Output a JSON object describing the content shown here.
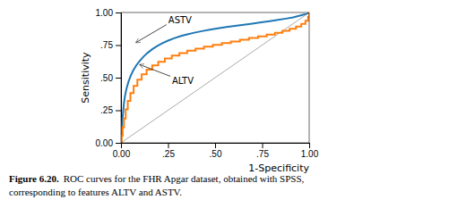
{
  "chart_data": {
    "type": "line",
    "title": "",
    "xlabel": "1-Specificity",
    "ylabel": "Sensitivity",
    "xlim": [
      0.0,
      1.0
    ],
    "ylim": [
      0.0,
      1.0
    ],
    "xticks": [
      {
        "value": 0.0,
        "label": "0.00"
      },
      {
        "value": 0.25,
        "label": ".25"
      },
      {
        "value": 0.5,
        "label": ".50"
      },
      {
        "value": 0.75,
        "label": ".75"
      },
      {
        "value": 1.0,
        "label": "1.00"
      }
    ],
    "yticks": [
      {
        "value": 0.0,
        "label": "0.00"
      },
      {
        "value": 0.25,
        "label": ".25"
      },
      {
        "value": 0.5,
        "label": ".50"
      },
      {
        "value": 0.75,
        "label": ".75"
      },
      {
        "value": 1.0,
        "label": "1.00"
      }
    ],
    "grid": false,
    "diagonal": {
      "x": [
        0,
        1
      ],
      "y": [
        0,
        1
      ]
    },
    "series": [
      {
        "line_style": "solid",
        "x": [
          0.0,
          0.002,
          0.005,
          0.008,
          0.012,
          0.016,
          0.022,
          0.03,
          0.04,
          0.052,
          0.066,
          0.082,
          0.1,
          0.12,
          0.142,
          0.166,
          0.192,
          0.22,
          0.25,
          0.282,
          0.316,
          0.352,
          0.39,
          0.43,
          0.472,
          0.515,
          0.56,
          0.606,
          0.652,
          0.698,
          0.744,
          0.79,
          0.834,
          0.876,
          0.914,
          0.946,
          0.972,
          0.99,
          1.0
        ],
        "values": [
          0.0,
          0.06,
          0.12,
          0.185,
          0.248,
          0.308,
          0.366,
          0.42,
          0.47,
          0.516,
          0.558,
          0.596,
          0.63,
          0.662,
          0.691,
          0.718,
          0.742,
          0.764,
          0.784,
          0.802,
          0.818,
          0.832,
          0.845,
          0.857,
          0.868,
          0.878,
          0.888,
          0.897,
          0.906,
          0.915,
          0.924,
          0.933,
          0.943,
          0.953,
          0.963,
          0.974,
          0.984,
          0.993,
          1.0
        ]
      },
      {
        "line_style": "steps",
        "x": [
          0.0,
          0.004,
          0.009,
          0.016,
          0.025,
          0.036,
          0.05,
          0.067,
          0.087,
          0.11,
          0.136,
          0.166,
          0.198,
          0.233,
          0.27,
          0.31,
          0.352,
          0.396,
          0.441,
          0.488,
          0.536,
          0.584,
          0.632,
          0.68,
          0.728,
          0.774,
          0.818,
          0.858,
          0.896,
          0.93,
          0.958,
          0.98,
          0.994,
          1.0
        ],
        "values": [
          0.0,
          0.055,
          0.118,
          0.186,
          0.256,
          0.322,
          0.382,
          0.436,
          0.484,
          0.526,
          0.562,
          0.594,
          0.622,
          0.647,
          0.669,
          0.689,
          0.707,
          0.723,
          0.738,
          0.752,
          0.765,
          0.778,
          0.791,
          0.804,
          0.817,
          0.83,
          0.844,
          0.859,
          0.875,
          0.892,
          0.912,
          0.937,
          0.965,
          1.0
        ]
      }
    ],
    "annotations": [
      {
        "text": "ASTV",
        "x": 0.08,
        "y": 0.77
      },
      {
        "text": "ALTV",
        "x": 0.1,
        "y": 0.6
      }
    ],
    "caption": [
      "Figure 6.20.",
      "ROC curves for the FHR Apgar dataset, obtained with SPSS,",
      "corresponding to features ALTV and ASTV."
    ]
  }
}
